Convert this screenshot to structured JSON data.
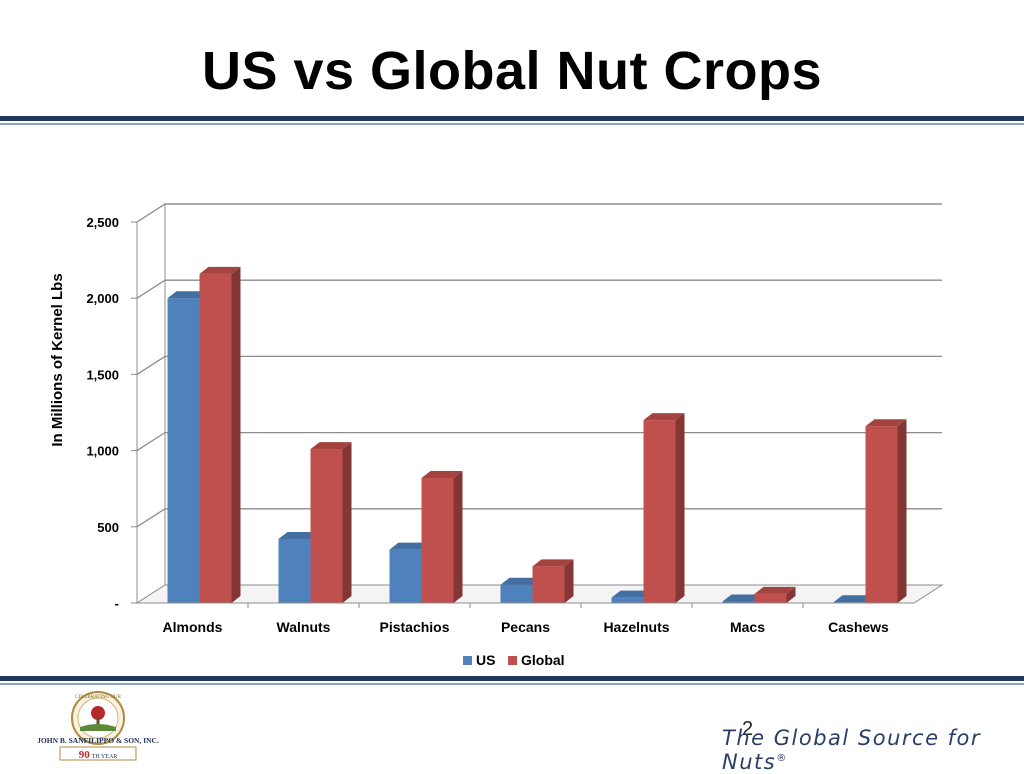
{
  "slide": {
    "title": "US vs Global Nut Crops",
    "slide_number": "2",
    "tagline": "The Global Source for Nuts",
    "tagline_mark": "®",
    "logo": {
      "company": "JOHN B. SANFILIPPO & SON, INC.",
      "arc_text": "CELEBRATING OUR",
      "anniversary_number": "90",
      "anniversary_suffix": "TH YEAR"
    }
  },
  "colors": {
    "us": "#4f81bd",
    "global": "#c0504d",
    "rule": "#223a5e"
  },
  "chart_data": {
    "type": "bar",
    "ylabel": "In Millions of Kernel Lbs",
    "categories": [
      "Almonds",
      "Walnuts",
      "Pistachios",
      "Pecans",
      "Hazelnuts",
      "Macs",
      "Cashews"
    ],
    "series": [
      {
        "name": "US",
        "values": [
          2000,
          420,
          350,
          120,
          35,
          10,
          5
        ]
      },
      {
        "name": "Global",
        "values": [
          2160,
          1010,
          820,
          240,
          1200,
          60,
          1160
        ]
      }
    ],
    "ylim": [
      0,
      2500
    ],
    "yticks": [
      {
        "value": 0,
        "label": "-"
      },
      {
        "value": 500,
        "label": "500"
      },
      {
        "value": 1000,
        "label": "1,000"
      },
      {
        "value": 1500,
        "label": "1,500"
      },
      {
        "value": 2000,
        "label": "2,000"
      },
      {
        "value": 2500,
        "label": "2,500"
      }
    ],
    "grid": true,
    "legend_position": "bottom"
  }
}
